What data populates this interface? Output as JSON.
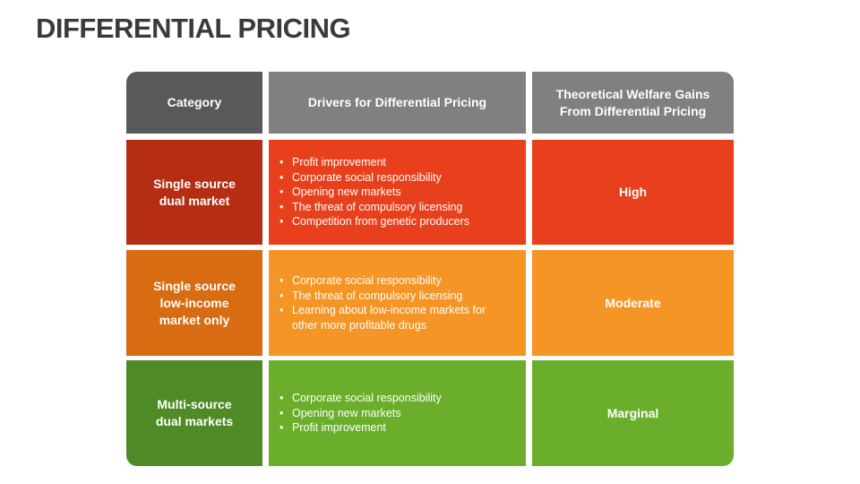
{
  "title": "DIFFERENTIAL PRICING",
  "headers": {
    "category": "Category",
    "drivers": "Drivers for Differential Pricing",
    "welfare_line1": "Theoretical Welfare Gains",
    "welfare_line2": "From Differential Pricing"
  },
  "rows": [
    {
      "category_lines": [
        "Single source",
        "dual market"
      ],
      "drivers": [
        "Profit improvement",
        "Corporate social responsibility",
        "Opening new markets",
        "The threat of compulsory licensing",
        "Competition from genetic producers"
      ],
      "welfare": "High"
    },
    {
      "category_lines": [
        "Single source",
        "low-income",
        "market only"
      ],
      "drivers": [
        "Corporate social responsibility",
        "The threat of compulsory licensing",
        "Learning about low-income markets for other more profitable drugs"
      ],
      "welfare": "Moderate"
    },
    {
      "category_lines": [
        "Multi-source",
        "dual markets"
      ],
      "drivers": [
        "Corporate social responsibility",
        "Opening new markets",
        "Profit improvement"
      ],
      "welfare": "Marginal"
    }
  ],
  "colors": {
    "header_dark": "#595959",
    "header_gray": "#808080",
    "row1_dark": "#b52e14",
    "row1": "#e8401c",
    "row2_dark": "#d86c12",
    "row2": "#f49526",
    "row3_dark": "#4e8a25",
    "row3": "#6aae2c"
  }
}
